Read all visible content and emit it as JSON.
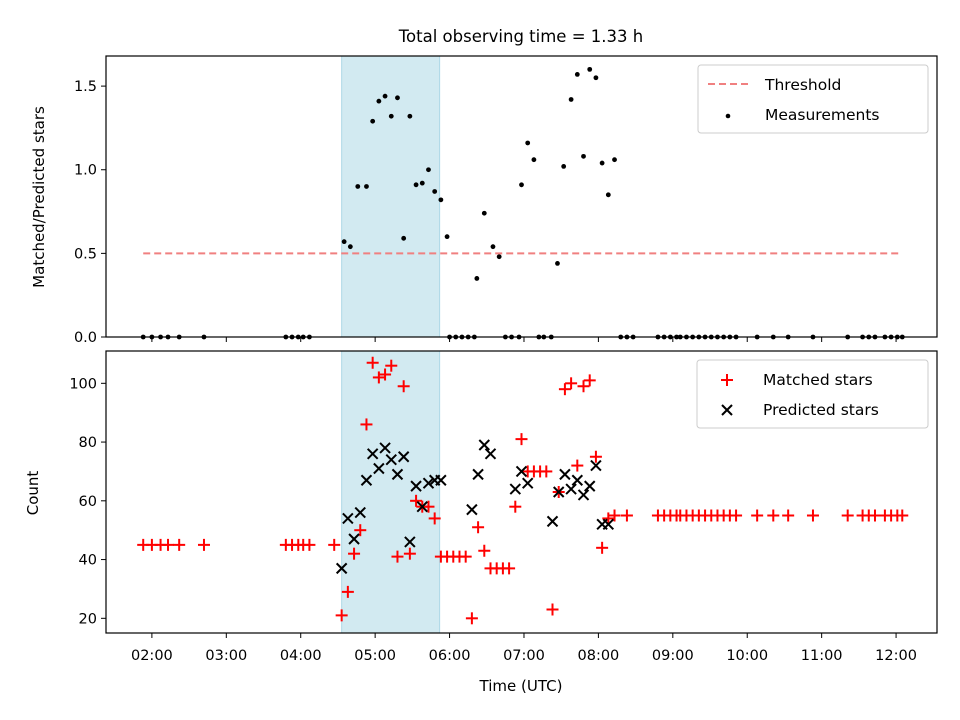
{
  "figure_title": "Total observing time = 1.33 h",
  "colors": {
    "threshold": "#f08080",
    "measurement": "#000000",
    "matched": "#ff0000",
    "predicted": "#000000",
    "shade": "#add8e6"
  },
  "chart_data": [
    {
      "type": "scatter",
      "title": "Total observing time = 1.33 h",
      "xlabel": "",
      "ylabel": "Matched/Predicted stars",
      "x_is_time": true,
      "xlim": [
        "01:23",
        "12:33"
      ],
      "ylim": [
        0,
        1.68
      ],
      "yticks": [
        0.0,
        0.5,
        1.0,
        1.5
      ],
      "yticklabels": [
        "0.0",
        "0.5",
        "1.0",
        "1.5"
      ],
      "grid": false,
      "legend_position": "top-right",
      "shaded_region": {
        "x_start": "04:33",
        "x_end": "05:52"
      },
      "threshold": {
        "name": "Threshold",
        "y": 0.5,
        "x_start": "01:53",
        "x_end": "12:03",
        "style": "dashed"
      },
      "series": [
        {
          "name": "Measurements",
          "marker": "dot",
          "points": [
            [
              "01:53",
              0
            ],
            [
              "02:00",
              0
            ],
            [
              "02:07",
              0
            ],
            [
              "02:13",
              0
            ],
            [
              "02:22",
              0
            ],
            [
              "02:42",
              0
            ],
            [
              "03:48",
              0
            ],
            [
              "03:53",
              0
            ],
            [
              "03:58",
              0
            ],
            [
              "04:02",
              0
            ],
            [
              "04:07",
              0
            ],
            [
              "04:35",
              0.57
            ],
            [
              "04:40",
              0.54
            ],
            [
              "04:46",
              0.9
            ],
            [
              "04:53",
              0.9
            ],
            [
              "04:58",
              1.29
            ],
            [
              "05:03",
              1.41
            ],
            [
              "05:08",
              1.44
            ],
            [
              "05:13",
              1.32
            ],
            [
              "05:18",
              1.43
            ],
            [
              "05:23",
              0.59
            ],
            [
              "05:28",
              1.32
            ],
            [
              "05:33",
              0.91
            ],
            [
              "05:38",
              0.92
            ],
            [
              "05:43",
              1.0
            ],
            [
              "05:48",
              0.87
            ],
            [
              "05:53",
              0.82
            ],
            [
              "05:58",
              0.6
            ],
            [
              "06:00",
              0
            ],
            [
              "06:05",
              0
            ],
            [
              "06:10",
              0
            ],
            [
              "06:15",
              0
            ],
            [
              "06:20",
              0
            ],
            [
              "06:22",
              0.35
            ],
            [
              "06:28",
              0.74
            ],
            [
              "06:35",
              0.54
            ],
            [
              "06:40",
              0.48
            ],
            [
              "06:45",
              0
            ],
            [
              "06:50",
              0
            ],
            [
              "06:56",
              0
            ],
            [
              "06:58",
              0.91
            ],
            [
              "07:03",
              1.16
            ],
            [
              "07:08",
              1.06
            ],
            [
              "07:12",
              0
            ],
            [
              "07:16",
              0
            ],
            [
              "07:22",
              0
            ],
            [
              "07:27",
              0.44
            ],
            [
              "07:32",
              1.02
            ],
            [
              "07:38",
              1.42
            ],
            [
              "07:43",
              1.57
            ],
            [
              "07:48",
              1.08
            ],
            [
              "07:53",
              1.6
            ],
            [
              "07:58",
              1.55
            ],
            [
              "08:03",
              1.04
            ],
            [
              "08:08",
              0.85
            ],
            [
              "08:13",
              1.06
            ],
            [
              "08:18",
              0
            ],
            [
              "08:23",
              0
            ],
            [
              "08:28",
              0
            ],
            [
              "08:48",
              0
            ],
            [
              "08:53",
              0
            ],
            [
              "08:58",
              0
            ],
            [
              "09:03",
              0
            ],
            [
              "09:06",
              0
            ],
            [
              "09:11",
              0
            ],
            [
              "09:16",
              0
            ],
            [
              "09:21",
              0
            ],
            [
              "09:26",
              0
            ],
            [
              "09:31",
              0
            ],
            [
              "09:36",
              0
            ],
            [
              "09:41",
              0
            ],
            [
              "09:46",
              0
            ],
            [
              "09:51",
              0
            ],
            [
              "10:08",
              0
            ],
            [
              "10:21",
              0
            ],
            [
              "10:33",
              0
            ],
            [
              "10:53",
              0
            ],
            [
              "11:21",
              0
            ],
            [
              "11:33",
              0
            ],
            [
              "11:38",
              0
            ],
            [
              "11:43",
              0
            ],
            [
              "11:51",
              0
            ],
            [
              "11:56",
              0
            ],
            [
              "12:01",
              0
            ],
            [
              "12:05",
              0
            ]
          ]
        }
      ]
    },
    {
      "type": "scatter",
      "title": "",
      "xlabel": "Time (UTC)",
      "ylabel": "Count",
      "x_is_time": true,
      "xlim": [
        "01:23",
        "12:33"
      ],
      "ylim": [
        15,
        111
      ],
      "yticks": [
        20,
        40,
        60,
        80,
        100
      ],
      "yticklabels": [
        "20",
        "40",
        "60",
        "80",
        "100"
      ],
      "xticks": [
        "02:00",
        "03:00",
        "04:00",
        "05:00",
        "06:00",
        "07:00",
        "08:00",
        "09:00",
        "10:00",
        "11:00",
        "12:00"
      ],
      "xticklabels": [
        "02:00",
        "03:00",
        "04:00",
        "05:00",
        "06:00",
        "07:00",
        "08:00",
        "09:00",
        "10:00",
        "11:00",
        "12:00"
      ],
      "grid": false,
      "legend_position": "top-right",
      "shaded_region": {
        "x_start": "04:33",
        "x_end": "05:52"
      },
      "series": [
        {
          "name": "Matched stars",
          "marker": "plus",
          "points": [
            [
              "01:53",
              45
            ],
            [
              "02:00",
              45
            ],
            [
              "02:07",
              45
            ],
            [
              "02:13",
              45
            ],
            [
              "02:22",
              45
            ],
            [
              "02:42",
              45
            ],
            [
              "03:48",
              45
            ],
            [
              "03:53",
              45
            ],
            [
              "03:58",
              45
            ],
            [
              "04:02",
              45
            ],
            [
              "04:07",
              45
            ],
            [
              "04:27",
              45
            ],
            [
              "04:33",
              21
            ],
            [
              "04:38",
              29
            ],
            [
              "04:43",
              42
            ],
            [
              "04:48",
              50
            ],
            [
              "04:53",
              86
            ],
            [
              "04:58",
              107
            ],
            [
              "05:03",
              102
            ],
            [
              "05:08",
              103
            ],
            [
              "05:13",
              106
            ],
            [
              "05:18",
              41
            ],
            [
              "05:23",
              99
            ],
            [
              "05:28",
              42
            ],
            [
              "05:33",
              60
            ],
            [
              "05:38",
              58
            ],
            [
              "05:43",
              58
            ],
            [
              "05:48",
              54
            ],
            [
              "05:53",
              41
            ],
            [
              "05:58",
              41
            ],
            [
              "06:03",
              41
            ],
            [
              "06:08",
              41
            ],
            [
              "06:13",
              41
            ],
            [
              "06:18",
              20
            ],
            [
              "06:23",
              51
            ],
            [
              "06:28",
              43
            ],
            [
              "06:33",
              37
            ],
            [
              "06:38",
              37
            ],
            [
              "06:43",
              37
            ],
            [
              "06:48",
              37
            ],
            [
              "06:53",
              58
            ],
            [
              "06:58",
              81
            ],
            [
              "07:03",
              70
            ],
            [
              "07:08",
              70
            ],
            [
              "07:13",
              70
            ],
            [
              "07:18",
              70
            ],
            [
              "07:23",
              23
            ],
            [
              "07:28",
              63
            ],
            [
              "07:33",
              98
            ],
            [
              "07:38",
              100
            ],
            [
              "07:43",
              72
            ],
            [
              "07:48",
              99
            ],
            [
              "07:53",
              101
            ],
            [
              "07:58",
              75
            ],
            [
              "08:03",
              44
            ],
            [
              "08:08",
              54
            ],
            [
              "08:13",
              55
            ],
            [
              "08:23",
              55
            ],
            [
              "08:48",
              55
            ],
            [
              "08:53",
              55
            ],
            [
              "08:58",
              55
            ],
            [
              "09:03",
              55
            ],
            [
              "09:06",
              55
            ],
            [
              "09:11",
              55
            ],
            [
              "09:16",
              55
            ],
            [
              "09:21",
              55
            ],
            [
              "09:26",
              55
            ],
            [
              "09:31",
              55
            ],
            [
              "09:36",
              55
            ],
            [
              "09:41",
              55
            ],
            [
              "09:46",
              55
            ],
            [
              "09:51",
              55
            ],
            [
              "10:08",
              55
            ],
            [
              "10:21",
              55
            ],
            [
              "10:33",
              55
            ],
            [
              "10:53",
              55
            ],
            [
              "11:21",
              55
            ],
            [
              "11:33",
              55
            ],
            [
              "11:38",
              55
            ],
            [
              "11:43",
              55
            ],
            [
              "11:51",
              55
            ],
            [
              "11:56",
              55
            ],
            [
              "12:01",
              55
            ],
            [
              "12:05",
              55
            ]
          ]
        },
        {
          "name": "Predicted stars",
          "marker": "x",
          "points": [
            [
              "04:33",
              37
            ],
            [
              "04:38",
              54
            ],
            [
              "04:43",
              47
            ],
            [
              "04:48",
              56
            ],
            [
              "04:53",
              67
            ],
            [
              "04:58",
              76
            ],
            [
              "05:03",
              71
            ],
            [
              "05:08",
              78
            ],
            [
              "05:13",
              74
            ],
            [
              "05:18",
              69
            ],
            [
              "05:23",
              75
            ],
            [
              "05:28",
              46
            ],
            [
              "05:33",
              65
            ],
            [
              "05:38",
              58
            ],
            [
              "05:43",
              66
            ],
            [
              "05:48",
              67
            ],
            [
              "05:53",
              67
            ],
            [
              "06:18",
              57
            ],
            [
              "06:23",
              69
            ],
            [
              "06:28",
              79
            ],
            [
              "06:33",
              76
            ],
            [
              "06:53",
              64
            ],
            [
              "06:58",
              70
            ],
            [
              "07:03",
              66
            ],
            [
              "07:23",
              53
            ],
            [
              "07:28",
              63
            ],
            [
              "07:33",
              69
            ],
            [
              "07:38",
              64
            ],
            [
              "07:43",
              67
            ],
            [
              "07:48",
              62
            ],
            [
              "07:53",
              65
            ],
            [
              "07:58",
              72
            ],
            [
              "08:03",
              52
            ],
            [
              "08:08",
              52
            ]
          ]
        }
      ]
    }
  ]
}
